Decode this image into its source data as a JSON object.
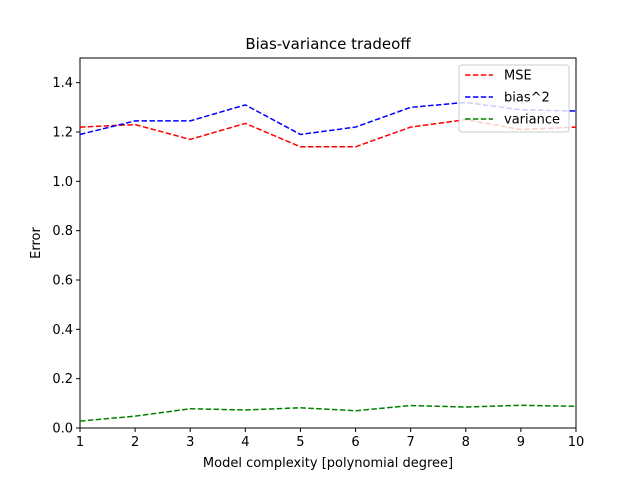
{
  "chart_data": {
    "type": "line",
    "title": "Bias-variance tradeoff",
    "xlabel": "Model complexity [polynomial degree]",
    "ylabel": "Error",
    "xlim": [
      1,
      10
    ],
    "ylim": [
      0.0,
      1.5
    ],
    "xticks": [
      1,
      2,
      3,
      4,
      5,
      6,
      7,
      8,
      9,
      10
    ],
    "xtick_labels": [
      "1",
      "2",
      "3",
      "4",
      "5",
      "6",
      "7",
      "8",
      "9",
      "10"
    ],
    "yticks": [
      0.0,
      0.2,
      0.4,
      0.6,
      0.8,
      1.0,
      1.2,
      1.4
    ],
    "ytick_labels": [
      "0.0",
      "0.2",
      "0.4",
      "0.6",
      "0.8",
      "1.0",
      "1.2",
      "1.4"
    ],
    "grid": false,
    "legend_position": "top-right",
    "x": [
      1,
      2,
      3,
      4,
      5,
      6,
      7,
      8,
      9,
      10
    ],
    "series": [
      {
        "name": "MSE",
        "color": "#ff0000",
        "line_style": "dashed",
        "values": [
          1.22,
          1.23,
          1.17,
          1.235,
          1.14,
          1.14,
          1.22,
          1.25,
          1.21,
          1.22
        ]
      },
      {
        "name": "bias^2",
        "color": "#0000ff",
        "line_style": "dashed",
        "values": [
          1.19,
          1.245,
          1.245,
          1.31,
          1.19,
          1.22,
          1.3,
          1.32,
          1.29,
          1.285
        ]
      },
      {
        "name": "variance",
        "color": "#008000",
        "line_style": "dashed",
        "values": [
          0.028,
          0.048,
          0.078,
          0.073,
          0.082,
          0.07,
          0.091,
          0.085,
          0.092,
          0.088
        ]
      }
    ]
  }
}
